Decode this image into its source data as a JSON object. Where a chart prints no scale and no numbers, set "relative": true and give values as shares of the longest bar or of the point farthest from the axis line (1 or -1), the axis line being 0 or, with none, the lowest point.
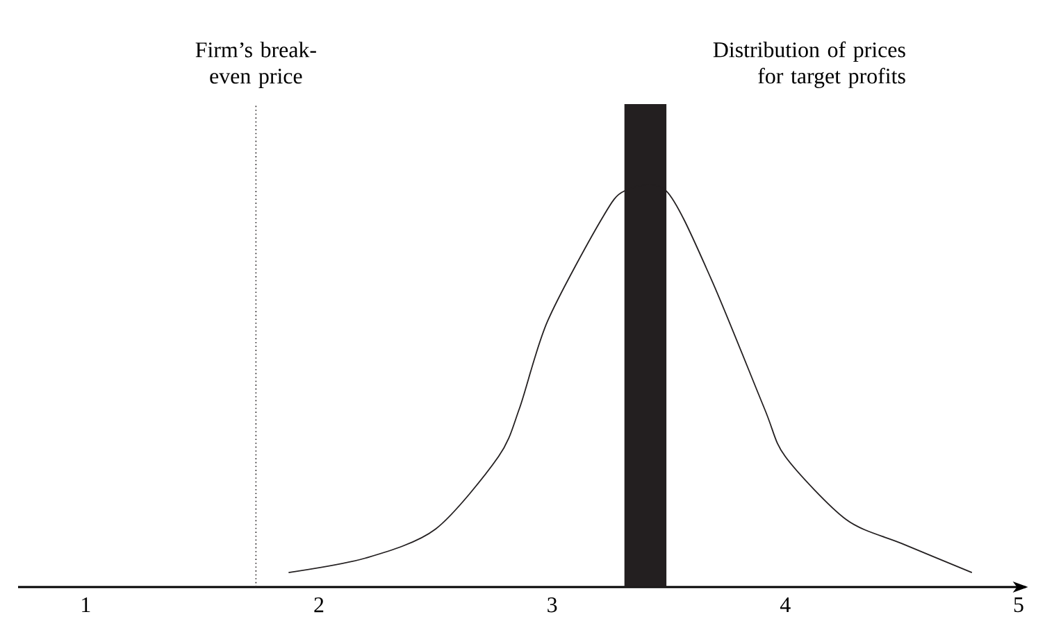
{
  "chart_data": {
    "type": "line",
    "relative": true,
    "xlim": [
      0.71,
      5.03
    ],
    "xticks": [
      1,
      2,
      3,
      4,
      5
    ],
    "series": [
      {
        "type": "bar",
        "color": "#231f20",
        "x": [
          3.4
        ],
        "values": [
          1
        ]
      },
      {
        "color": "#231f20",
        "line_style": "solid",
        "marker": "none",
        "x": [
          1.87,
          2.2,
          2.5,
          2.77,
          2.86,
          2.98,
          3.21,
          3.31,
          3.49,
          3.68,
          3.91,
          4.0,
          4.26,
          4.5,
          4.8
        ],
        "values": [
          0.03,
          0.06,
          0.12,
          0.27,
          0.37,
          0.55,
          0.76,
          0.82,
          0.82,
          0.64,
          0.37,
          0.27,
          0.14,
          0.09,
          0.03
        ]
      }
    ],
    "ref_lines": [
      {
        "axis": "x",
        "value": 1.73,
        "label": "Firm’s break-even price",
        "color": "#231f20",
        "line_style": "dotted"
      }
    ],
    "annotations": [
      "Distribution of prices for target profits"
    ]
  }
}
